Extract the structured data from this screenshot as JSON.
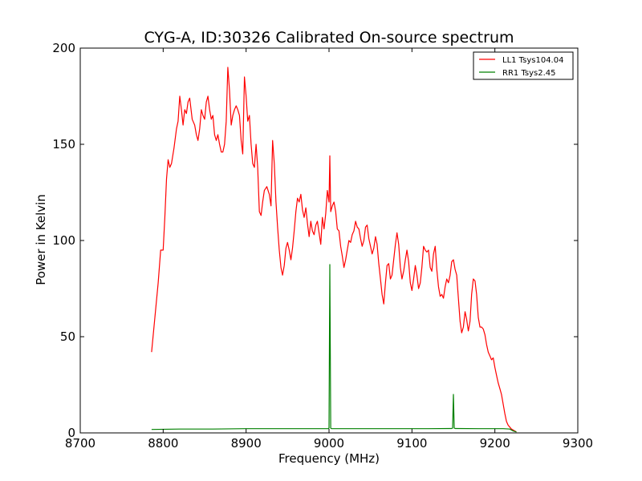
{
  "chart_data": {
    "type": "line",
    "title": "CYG-A, ID:30326 Calibrated On-source spectrum",
    "xlabel": "Frequency (MHz)",
    "ylabel": "Power in Kelvin",
    "xlim": [
      8700,
      9300
    ],
    "ylim": [
      0,
      200
    ],
    "xticks": [
      "8700",
      "8800",
      "8900",
      "9000",
      "9100",
      "9200",
      "9300"
    ],
    "yticks": [
      "0",
      "50",
      "100",
      "150",
      "200"
    ],
    "grid": false,
    "legend_position": "top-right",
    "series": [
      {
        "name": "LL1 Tsys104.04",
        "color": "#ff0000",
        "points": [
          [
            8786,
            42
          ],
          [
            8790,
            60
          ],
          [
            8794,
            78
          ],
          [
            8797,
            95
          ],
          [
            8800,
            95
          ],
          [
            8802,
            112
          ],
          [
            8804,
            132
          ],
          [
            8806,
            142
          ],
          [
            8808,
            138
          ],
          [
            8810,
            140
          ],
          [
            8813,
            148
          ],
          [
            8816,
            158
          ],
          [
            8818,
            162
          ],
          [
            8820,
            175
          ],
          [
            8822,
            168
          ],
          [
            8824,
            160
          ],
          [
            8826,
            168
          ],
          [
            8828,
            166
          ],
          [
            8830,
            172
          ],
          [
            8832,
            174
          ],
          [
            8835,
            163
          ],
          [
            8838,
            160
          ],
          [
            8840,
            155
          ],
          [
            8842,
            152
          ],
          [
            8844,
            158
          ],
          [
            8846,
            168
          ],
          [
            8848,
            165
          ],
          [
            8850,
            163
          ],
          [
            8852,
            172
          ],
          [
            8854,
            175
          ],
          [
            8856,
            168
          ],
          [
            8858,
            163
          ],
          [
            8860,
            165
          ],
          [
            8862,
            155
          ],
          [
            8864,
            152
          ],
          [
            8866,
            155
          ],
          [
            8868,
            150
          ],
          [
            8870,
            146
          ],
          [
            8872,
            146
          ],
          [
            8874,
            150
          ],
          [
            8876,
            162
          ],
          [
            8878,
            190
          ],
          [
            8880,
            178
          ],
          [
            8882,
            160
          ],
          [
            8884,
            165
          ],
          [
            8886,
            168
          ],
          [
            8888,
            170
          ],
          [
            8890,
            168
          ],
          [
            8892,
            165
          ],
          [
            8894,
            152
          ],
          [
            8896,
            145
          ],
          [
            8898,
            185
          ],
          [
            8900,
            175
          ],
          [
            8902,
            162
          ],
          [
            8904,
            165
          ],
          [
            8906,
            150
          ],
          [
            8908,
            140
          ],
          [
            8910,
            138
          ],
          [
            8912,
            150
          ],
          [
            8914,
            138
          ],
          [
            8916,
            115
          ],
          [
            8918,
            113
          ],
          [
            8920,
            120
          ],
          [
            8922,
            126
          ],
          [
            8925,
            128
          ],
          [
            8928,
            124
          ],
          [
            8930,
            118
          ],
          [
            8932,
            152
          ],
          [
            8934,
            140
          ],
          [
            8936,
            120
          ],
          [
            8938,
            107
          ],
          [
            8940,
            95
          ],
          [
            8942,
            86
          ],
          [
            8944,
            82
          ],
          [
            8946,
            87
          ],
          [
            8948,
            96
          ],
          [
            8950,
            99
          ],
          [
            8952,
            95
          ],
          [
            8954,
            90
          ],
          [
            8956,
            96
          ],
          [
            8958,
            105
          ],
          [
            8960,
            115
          ],
          [
            8962,
            122
          ],
          [
            8964,
            120
          ],
          [
            8966,
            124
          ],
          [
            8968,
            116
          ],
          [
            8970,
            112
          ],
          [
            8972,
            117
          ],
          [
            8974,
            109
          ],
          [
            8976,
            102
          ],
          [
            8978,
            110
          ],
          [
            8980,
            105
          ],
          [
            8982,
            103
          ],
          [
            8984,
            108
          ],
          [
            8986,
            110
          ],
          [
            8988,
            104
          ],
          [
            8990,
            98
          ],
          [
            8992,
            112
          ],
          [
            8994,
            106
          ],
          [
            8996,
            114
          ],
          [
            8998,
            126
          ],
          [
            9000,
            120
          ],
          [
            9001,
            144
          ],
          [
            9002,
            115
          ],
          [
            9004,
            118
          ],
          [
            9006,
            120
          ],
          [
            9008,
            115
          ],
          [
            9010,
            106
          ],
          [
            9012,
            105
          ],
          [
            9014,
            97
          ],
          [
            9016,
            92
          ],
          [
            9018,
            86
          ],
          [
            9020,
            90
          ],
          [
            9022,
            95
          ],
          [
            9024,
            100
          ],
          [
            9026,
            99
          ],
          [
            9028,
            103
          ],
          [
            9030,
            105
          ],
          [
            9032,
            110
          ],
          [
            9034,
            107
          ],
          [
            9036,
            106
          ],
          [
            9038,
            101
          ],
          [
            9040,
            97
          ],
          [
            9042,
            100
          ],
          [
            9044,
            107
          ],
          [
            9046,
            108
          ],
          [
            9048,
            101
          ],
          [
            9050,
            97
          ],
          [
            9052,
            93
          ],
          [
            9054,
            96
          ],
          [
            9056,
            102
          ],
          [
            9058,
            98
          ],
          [
            9060,
            88
          ],
          [
            9062,
            80
          ],
          [
            9064,
            72
          ],
          [
            9066,
            67
          ],
          [
            9068,
            78
          ],
          [
            9070,
            87
          ],
          [
            9072,
            88
          ],
          [
            9074,
            80
          ],
          [
            9076,
            82
          ],
          [
            9078,
            90
          ],
          [
            9080,
            98
          ],
          [
            9082,
            104
          ],
          [
            9084,
            98
          ],
          [
            9086,
            86
          ],
          [
            9088,
            80
          ],
          [
            9090,
            84
          ],
          [
            9092,
            90
          ],
          [
            9094,
            95
          ],
          [
            9096,
            89
          ],
          [
            9098,
            78
          ],
          [
            9100,
            74
          ],
          [
            9102,
            80
          ],
          [
            9104,
            87
          ],
          [
            9106,
            82
          ],
          [
            9108,
            75
          ],
          [
            9110,
            78
          ],
          [
            9112,
            86
          ],
          [
            9114,
            97
          ],
          [
            9116,
            95
          ],
          [
            9118,
            94
          ],
          [
            9120,
            95
          ],
          [
            9122,
            86
          ],
          [
            9124,
            84
          ],
          [
            9126,
            93
          ],
          [
            9128,
            97
          ],
          [
            9130,
            85
          ],
          [
            9132,
            76
          ],
          [
            9134,
            71
          ],
          [
            9136,
            72
          ],
          [
            9138,
            70
          ],
          [
            9140,
            76
          ],
          [
            9142,
            80
          ],
          [
            9144,
            78
          ],
          [
            9146,
            82
          ],
          [
            9148,
            89
          ],
          [
            9150,
            90
          ],
          [
            9152,
            85
          ],
          [
            9154,
            82
          ],
          [
            9156,
            70
          ],
          [
            9158,
            58
          ],
          [
            9160,
            52
          ],
          [
            9162,
            55
          ],
          [
            9164,
            63
          ],
          [
            9166,
            59
          ],
          [
            9168,
            53
          ],
          [
            9170,
            58
          ],
          [
            9172,
            72
          ],
          [
            9174,
            80
          ],
          [
            9176,
            79
          ],
          [
            9178,
            72
          ],
          [
            9180,
            60
          ],
          [
            9182,
            55
          ],
          [
            9184,
            55
          ],
          [
            9186,
            54
          ],
          [
            9188,
            51
          ],
          [
            9190,
            46
          ],
          [
            9192,
            42
          ],
          [
            9194,
            40
          ],
          [
            9196,
            38
          ],
          [
            9198,
            39
          ],
          [
            9200,
            34
          ],
          [
            9202,
            30
          ],
          [
            9204,
            26
          ],
          [
            9206,
            23
          ],
          [
            9208,
            20
          ],
          [
            9210,
            15
          ],
          [
            9212,
            10
          ],
          [
            9214,
            6
          ],
          [
            9216,
            4
          ],
          [
            9218,
            3
          ],
          [
            9220,
            2
          ],
          [
            9222,
            1.5
          ],
          [
            9224,
            1
          ],
          [
            9226,
            0.5
          ]
        ]
      },
      {
        "name": "RR1 Tsys2.45",
        "color": "#008000",
        "points": [
          [
            8786,
            1.8
          ],
          [
            8820,
            2.0
          ],
          [
            8860,
            2.0
          ],
          [
            8900,
            2.2
          ],
          [
            8940,
            2.2
          ],
          [
            8980,
            2.2
          ],
          [
            8999,
            2.2
          ],
          [
            9000,
            2.5
          ],
          [
            9001,
            87.5
          ],
          [
            9002,
            2.5
          ],
          [
            9003,
            2.2
          ],
          [
            9040,
            2.2
          ],
          [
            9080,
            2.2
          ],
          [
            9120,
            2.2
          ],
          [
            9148,
            2.3
          ],
          [
            9149,
            2.5
          ],
          [
            9150,
            20
          ],
          [
            9151,
            2.5
          ],
          [
            9152,
            2.3
          ],
          [
            9180,
            2.2
          ],
          [
            9210,
            2.2
          ],
          [
            9218,
            2.0
          ],
          [
            9222,
            1.0
          ],
          [
            9226,
            0.5
          ]
        ]
      }
    ]
  }
}
